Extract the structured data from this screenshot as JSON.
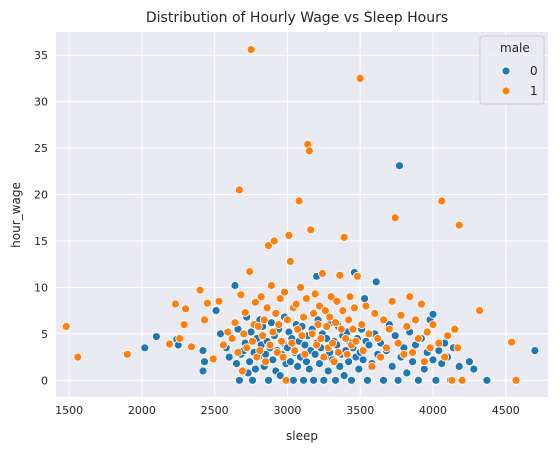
{
  "chart_data": {
    "type": "scatter",
    "title": "Distribution of Hourly Wage vs Sleep Hours",
    "xlabel": "sleep",
    "ylabel": "hour_wage",
    "xlim": [
      1410,
      4790
    ],
    "ylim": [
      -1.8,
      37.5
    ],
    "xticks": [
      1500,
      2000,
      2500,
      3000,
      3500,
      4000,
      4500
    ],
    "yticks": [
      0,
      5,
      10,
      15,
      20,
      25,
      30,
      35
    ],
    "grid": true,
    "background": "#eaeaf2",
    "legend": {
      "title": "male",
      "position": "top-right"
    },
    "series": [
      {
        "name": "0",
        "color": "#1f77b4",
        "points": [
          [
            2020,
            3.5
          ],
          [
            2100,
            4.7
          ],
          [
            2240,
            4.4
          ],
          [
            2250,
            3.8
          ],
          [
            2420,
            3.2
          ],
          [
            2420,
            1.0
          ],
          [
            2430,
            2.0
          ],
          [
            2510,
            7.5
          ],
          [
            2540,
            5.0
          ],
          [
            2580,
            3.5
          ],
          [
            2600,
            2.5
          ],
          [
            2640,
            10.2
          ],
          [
            2650,
            1.8
          ],
          [
            2660,
            5.5
          ],
          [
            2670,
            0.0
          ],
          [
            2680,
            2.8
          ],
          [
            2700,
            3.2
          ],
          [
            2710,
            4.0
          ],
          [
            2720,
            6.8
          ],
          [
            2730,
            0.8
          ],
          [
            2740,
            2.0
          ],
          [
            2750,
            5.2
          ],
          [
            2760,
            0.0
          ],
          [
            2770,
            3.0
          ],
          [
            2780,
            1.2
          ],
          [
            2790,
            4.5
          ],
          [
            2800,
            2.5
          ],
          [
            2810,
            6.5
          ],
          [
            2820,
            3.8
          ],
          [
            2830,
            5.8
          ],
          [
            2840,
            1.5
          ],
          [
            2850,
            2.8
          ],
          [
            2860,
            4.2
          ],
          [
            2870,
            0.0
          ],
          [
            2880,
            3.5
          ],
          [
            2890,
            6.2
          ],
          [
            2900,
            2.2
          ],
          [
            2910,
            4.8
          ],
          [
            2920,
            1.0
          ],
          [
            2930,
            3.2
          ],
          [
            2940,
            5.5
          ],
          [
            2950,
            0.5
          ],
          [
            2960,
            2.8
          ],
          [
            2970,
            4.0
          ],
          [
            2980,
            6.8
          ],
          [
            2990,
            1.8
          ],
          [
            3000,
            3.5
          ],
          [
            3010,
            5.2
          ],
          [
            3020,
            2.0
          ],
          [
            3030,
            4.5
          ],
          [
            3040,
            0.0
          ],
          [
            3050,
            3.0
          ],
          [
            3060,
            6.0
          ],
          [
            3070,
            1.5
          ],
          [
            3080,
            4.2
          ],
          [
            3090,
            2.5
          ],
          [
            3100,
            5.8
          ],
          [
            3110,
            0.0
          ],
          [
            3120,
            3.8
          ],
          [
            3130,
            2.0
          ],
          [
            3140,
            4.8
          ],
          [
            3150,
            1.2
          ],
          [
            3160,
            3.2
          ],
          [
            3170,
            5.5
          ],
          [
            3180,
            0.0
          ],
          [
            3190,
            2.8
          ],
          [
            3200,
            4.0
          ],
          [
            3200,
            11.2
          ],
          [
            3210,
            6.5
          ],
          [
            3220,
            1.8
          ],
          [
            3230,
            3.5
          ],
          [
            3240,
            5.0
          ],
          [
            3250,
            0.0
          ],
          [
            3260,
            2.5
          ],
          [
            3270,
            4.5
          ],
          [
            3280,
            1.0
          ],
          [
            3290,
            3.0
          ],
          [
            3300,
            6.2
          ],
          [
            3310,
            2.2
          ],
          [
            3320,
            4.2
          ],
          [
            3330,
            0.0
          ],
          [
            3340,
            3.8
          ],
          [
            3350,
            5.8
          ],
          [
            3360,
            1.5
          ],
          [
            3370,
            2.8
          ],
          [
            3380,
            4.8
          ],
          [
            3390,
            0.5
          ],
          [
            3400,
            3.2
          ],
          [
            3410,
            5.2
          ],
          [
            3420,
            2.0
          ],
          [
            3430,
            4.0
          ],
          [
            3440,
            0.0
          ],
          [
            3450,
            3.5
          ],
          [
            3460,
            11.6
          ],
          [
            3470,
            2.5
          ],
          [
            3480,
            4.5
          ],
          [
            3490,
            1.2
          ],
          [
            3500,
            3.0
          ],
          [
            3510,
            5.5
          ],
          [
            3520,
            2.2
          ],
          [
            3530,
            8.8
          ],
          [
            3540,
            4.2
          ],
          [
            3550,
            0.0
          ],
          [
            3560,
            3.8
          ],
          [
            3580,
            1.8
          ],
          [
            3600,
            5.0
          ],
          [
            3610,
            10.6
          ],
          [
            3620,
            2.8
          ],
          [
            3640,
            4.0
          ],
          [
            3660,
            0.0
          ],
          [
            3680,
            3.2
          ],
          [
            3700,
            6.0
          ],
          [
            3720,
            1.5
          ],
          [
            3740,
            4.8
          ],
          [
            3760,
            0.0
          ],
          [
            3770,
            23.1
          ],
          [
            3780,
            2.5
          ],
          [
            3800,
            3.5
          ],
          [
            3820,
            0.8
          ],
          [
            3840,
            5.2
          ],
          [
            3860,
            2.0
          ],
          [
            3880,
            3.8
          ],
          [
            3900,
            0.0
          ],
          [
            3920,
            4.5
          ],
          [
            3940,
            1.2
          ],
          [
            3960,
            3.0
          ],
          [
            3980,
            6.5
          ],
          [
            4000,
            2.2
          ],
          [
            4000,
            7.1
          ],
          [
            4020,
            0.0
          ],
          [
            4040,
            3.2
          ],
          [
            4060,
            1.8
          ],
          [
            4080,
            4.0
          ],
          [
            4100,
            2.5
          ],
          [
            4120,
            0.0
          ],
          [
            4140,
            3.5
          ],
          [
            4180,
            1.5
          ],
          [
            4250,
            2.0
          ],
          [
            4280,
            1.2
          ],
          [
            4370,
            0.0
          ],
          [
            4700,
            3.2
          ]
        ]
      },
      {
        "name": "1",
        "color": "#ff7f0e",
        "points": [
          [
            1480,
            5.8
          ],
          [
            1560,
            2.5
          ],
          [
            1900,
            2.8
          ],
          [
            2190,
            3.9
          ],
          [
            2230,
            8.2
          ],
          [
            2260,
            4.5
          ],
          [
            2290,
            6.0
          ],
          [
            2300,
            7.7
          ],
          [
            2340,
            3.6
          ],
          [
            2400,
            9.7
          ],
          [
            2430,
            6.5
          ],
          [
            2450,
            8.3
          ],
          [
            2490,
            2.3
          ],
          [
            2530,
            8.5
          ],
          [
            2560,
            3.8
          ],
          [
            2590,
            5.2
          ],
          [
            2620,
            4.5
          ],
          [
            2640,
            6.2
          ],
          [
            2660,
            3.0
          ],
          [
            2670,
            20.5
          ],
          [
            2680,
            9.2
          ],
          [
            2690,
            1.0
          ],
          [
            2700,
            5.0
          ],
          [
            2710,
            7.3
          ],
          [
            2720,
            3.5
          ],
          [
            2740,
            11.7
          ],
          [
            2750,
            35.6
          ],
          [
            2760,
            4.2
          ],
          [
            2770,
            6.0
          ],
          [
            2780,
            8.4
          ],
          [
            2790,
            2.5
          ],
          [
            2800,
            5.8
          ],
          [
            2810,
            3.2
          ],
          [
            2820,
            9.0
          ],
          [
            2830,
            4.8
          ],
          [
            2840,
            6.5
          ],
          [
            2850,
            2.0
          ],
          [
            2860,
            7.8
          ],
          [
            2870,
            14.5
          ],
          [
            2880,
            3.8
          ],
          [
            2890,
            10.2
          ],
          [
            2900,
            5.2
          ],
          [
            2910,
            15.0
          ],
          [
            2920,
            7.2
          ],
          [
            2930,
            3.0
          ],
          [
            2940,
            6.0
          ],
          [
            2950,
            8.8
          ],
          [
            2960,
            4.2
          ],
          [
            2970,
            2.5
          ],
          [
            2980,
            9.5
          ],
          [
            2990,
            0.0
          ],
          [
            3000,
            6.5
          ],
          [
            3010,
            15.6
          ],
          [
            3020,
            12.8
          ],
          [
            3030,
            4.0
          ],
          [
            3040,
            7.8
          ],
          [
            3050,
            3.2
          ],
          [
            3060,
            8.2
          ],
          [
            3070,
            5.5
          ],
          [
            3080,
            19.3
          ],
          [
            3090,
            10.0
          ],
          [
            3100,
            4.8
          ],
          [
            3110,
            6.8
          ],
          [
            3120,
            2.8
          ],
          [
            3130,
            8.8
          ],
          [
            3140,
            25.4
          ],
          [
            3150,
            24.7
          ],
          [
            3160,
            16.2
          ],
          [
            3170,
            5.0
          ],
          [
            3180,
            7.2
          ],
          [
            3190,
            9.3
          ],
          [
            3200,
            3.8
          ],
          [
            3210,
            6.0
          ],
          [
            3220,
            8.0
          ],
          [
            3230,
            4.5
          ],
          [
            3240,
            11.5
          ],
          [
            3250,
            2.5
          ],
          [
            3260,
            7.5
          ],
          [
            3270,
            5.8
          ],
          [
            3280,
            3.5
          ],
          [
            3290,
            6.8
          ],
          [
            3300,
            9.0
          ],
          [
            3310,
            4.0
          ],
          [
            3320,
            2.0
          ],
          [
            3330,
            6.2
          ],
          [
            3340,
            8.5
          ],
          [
            3350,
            3.0
          ],
          [
            3360,
            11.3
          ],
          [
            3370,
            5.5
          ],
          [
            3380,
            7.5
          ],
          [
            3390,
            15.4
          ],
          [
            3400,
            4.5
          ],
          [
            3410,
            2.8
          ],
          [
            3420,
            6.5
          ],
          [
            3430,
            9.0
          ],
          [
            3440,
            3.8
          ],
          [
            3450,
            5.5
          ],
          [
            3460,
            7.8
          ],
          [
            3470,
            4.2
          ],
          [
            3480,
            11.2
          ],
          [
            3500,
            32.5
          ],
          [
            3510,
            6.0
          ],
          [
            3520,
            3.2
          ],
          [
            3540,
            8.0
          ],
          [
            3560,
            5.0
          ],
          [
            3580,
            1.5
          ],
          [
            3600,
            7.2
          ],
          [
            3620,
            4.5
          ],
          [
            3640,
            2.5
          ],
          [
            3660,
            6.5
          ],
          [
            3680,
            3.5
          ],
          [
            3700,
            5.5
          ],
          [
            3720,
            8.5
          ],
          [
            3740,
            17.5
          ],
          [
            3760,
            4.0
          ],
          [
            3780,
            7.0
          ],
          [
            3800,
            2.8
          ],
          [
            3820,
            5.8
          ],
          [
            3840,
            9.0
          ],
          [
            3860,
            3.0
          ],
          [
            3880,
            6.5
          ],
          [
            3900,
            4.5
          ],
          [
            3920,
            8.2
          ],
          [
            3940,
            2.0
          ],
          [
            3960,
            5.2
          ],
          [
            3980,
            3.5
          ],
          [
            4000,
            6.0
          ],
          [
            4040,
            4.0
          ],
          [
            4060,
            19.3
          ],
          [
            4080,
            2.5
          ],
          [
            4100,
            4.8
          ],
          [
            4130,
            0.0
          ],
          [
            4150,
            5.5
          ],
          [
            4170,
            3.5
          ],
          [
            4180,
            16.7
          ],
          [
            4200,
            0.0
          ],
          [
            4320,
            7.5
          ],
          [
            4540,
            4.1
          ],
          [
            4570,
            0.0
          ]
        ]
      }
    ]
  }
}
